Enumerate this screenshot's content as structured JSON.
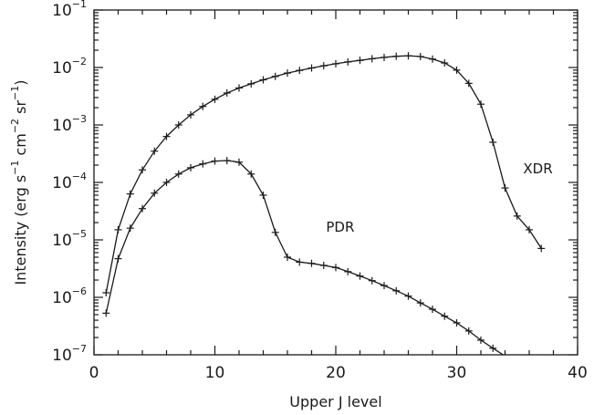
{
  "chart_data": {
    "type": "line",
    "xlabel": "Upper J level",
    "ylabel_parts": {
      "base": "Intensity (erg s",
      "s_exp": "−1",
      "mid": " cm",
      "cm_exp": "−2",
      "mid2": " sr",
      "sr_exp": "−1",
      "end": ")"
    },
    "xlim": [
      0,
      40
    ],
    "ylim": [
      1e-07,
      0.1
    ],
    "yscale": "log",
    "x_ticks": [
      0,
      10,
      20,
      30,
      40
    ],
    "x_tick_labels": [
      "0",
      "10",
      "20",
      "30",
      "40"
    ],
    "y_ticks": [
      {
        "value": 1e-07,
        "base": "10",
        "exp": "−7"
      },
      {
        "value": 1e-06,
        "base": "10",
        "exp": "−6"
      },
      {
        "value": 1e-05,
        "base": "10",
        "exp": "−5"
      },
      {
        "value": 0.0001,
        "base": "10",
        "exp": "−4"
      },
      {
        "value": 0.001,
        "base": "10",
        "exp": "−3"
      },
      {
        "value": 0.01,
        "base": "10",
        "exp": "−2"
      },
      {
        "value": 0.1,
        "base": "10",
        "exp": "−1"
      }
    ],
    "grid": false,
    "series": [
      {
        "name": "XDR",
        "marker": "plus",
        "x": [
          1,
          2,
          3,
          4,
          5,
          6,
          7,
          8,
          9,
          10,
          11,
          12,
          13,
          14,
          15,
          16,
          17,
          18,
          19,
          20,
          21,
          22,
          23,
          24,
          25,
          26,
          27,
          28,
          29,
          30,
          31,
          32,
          33,
          34,
          35,
          36,
          37
        ],
        "y": [
          1.2e-06,
          1.5e-05,
          6.3e-05,
          0.000165,
          0.00035,
          0.00063,
          0.001,
          0.0015,
          0.0021,
          0.0028,
          0.0036,
          0.0044,
          0.0052,
          0.0061,
          0.007,
          0.008,
          0.0089,
          0.0098,
          0.0107,
          0.0116,
          0.0125,
          0.0133,
          0.0142,
          0.015,
          0.0157,
          0.016,
          0.0155,
          0.014,
          0.012,
          0.009,
          0.0053,
          0.0023,
          0.0005,
          8e-05,
          2.6e-05,
          1.5e-05,
          7.1e-06
        ]
      },
      {
        "name": "PDR",
        "marker": "plus",
        "x": [
          1,
          2,
          3,
          4,
          5,
          6,
          7,
          8,
          9,
          10,
          11,
          12,
          13,
          14,
          15,
          16,
          17,
          18,
          19,
          20,
          21,
          22,
          23,
          24,
          25,
          26,
          27,
          28,
          29,
          30,
          31,
          32,
          33,
          34
        ],
        "y": [
          5.3e-07,
          4.7e-06,
          1.6e-05,
          3.5e-05,
          6.5e-05,
          0.0001,
          0.00014,
          0.00018,
          0.00021,
          0.000235,
          0.00024,
          0.000225,
          0.00014,
          6e-05,
          1.35e-05,
          5e-06,
          4.1e-06,
          3.9e-06,
          3.6e-06,
          3.3e-06,
          2.8e-06,
          2.35e-06,
          1.95e-06,
          1.6e-06,
          1.3e-06,
          1.05e-06,
          8e-07,
          6.2e-07,
          4.7e-07,
          3.6e-07,
          2.6e-07,
          1.8e-07,
          1.3e-07,
          9.5e-08
        ]
      }
    ],
    "annotations": [
      {
        "text": "XDR",
        "x": 35.5,
        "y": 0.000145
      },
      {
        "text": "PDR",
        "x": 19.2,
        "y": 1.4e-05
      }
    ]
  }
}
